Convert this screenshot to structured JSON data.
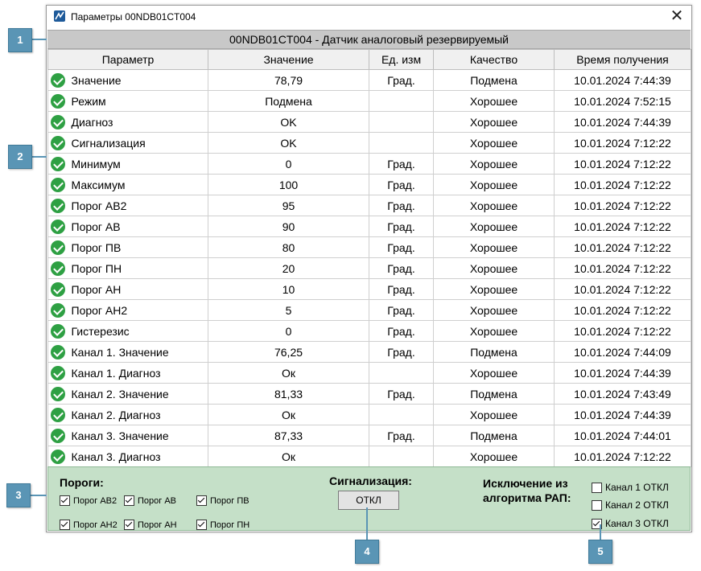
{
  "window": {
    "title": "Параметры 00NDB01CT004",
    "close_glyph": "✕"
  },
  "header": {
    "title": "00NDB01CT004 - Датчик аналоговый резервируемый"
  },
  "columns": [
    "Параметр",
    "Значение",
    "Ед. изм",
    "Качество",
    "Время получения"
  ],
  "rows": [
    {
      "name": "Значение",
      "value": "78,79",
      "unit": "Град.",
      "quality": "Подмена",
      "time": "10.01.2024 7:44:39"
    },
    {
      "name": "Режим",
      "value": "Подмена",
      "unit": "",
      "quality": "Хорошее",
      "time": "10.01.2024 7:52:15"
    },
    {
      "name": "Диагноз",
      "value": "OK",
      "unit": "",
      "quality": "Хорошее",
      "time": "10.01.2024 7:44:39"
    },
    {
      "name": "Сигнализация",
      "value": "OK",
      "unit": "",
      "quality": "Хорошее",
      "time": "10.01.2024 7:12:22"
    },
    {
      "name": "Минимум",
      "value": "0",
      "unit": "Град.",
      "quality": "Хорошее",
      "time": "10.01.2024 7:12:22"
    },
    {
      "name": "Максимум",
      "value": "100",
      "unit": "Град.",
      "quality": "Хорошее",
      "time": "10.01.2024 7:12:22"
    },
    {
      "name": "Порог АВ2",
      "value": "95",
      "unit": "Град.",
      "quality": "Хорошее",
      "time": "10.01.2024 7:12:22"
    },
    {
      "name": "Порог АВ",
      "value": "90",
      "unit": "Град.",
      "quality": "Хорошее",
      "time": "10.01.2024 7:12:22"
    },
    {
      "name": "Порог ПВ",
      "value": "80",
      "unit": "Град.",
      "quality": "Хорошее",
      "time": "10.01.2024 7:12:22"
    },
    {
      "name": "Порог ПН",
      "value": "20",
      "unit": "Град.",
      "quality": "Хорошее",
      "time": "10.01.2024 7:12:22"
    },
    {
      "name": "Порог АН",
      "value": "10",
      "unit": "Град.",
      "quality": "Хорошее",
      "time": "10.01.2024 7:12:22"
    },
    {
      "name": "Порог АН2",
      "value": "5",
      "unit": "Град.",
      "quality": "Хорошее",
      "time": "10.01.2024 7:12:22"
    },
    {
      "name": "Гистерезис",
      "value": "0",
      "unit": "Град.",
      "quality": "Хорошее",
      "time": "10.01.2024 7:12:22"
    },
    {
      "name": "Канал 1. Значение",
      "value": "76,25",
      "unit": "Град.",
      "quality": "Подмена",
      "time": "10.01.2024 7:44:09"
    },
    {
      "name": "Канал 1. Диагноз",
      "value": "Ок",
      "unit": "",
      "quality": "Хорошее",
      "time": "10.01.2024 7:44:39"
    },
    {
      "name": "Канал 2. Значение",
      "value": "81,33",
      "unit": "Град.",
      "quality": "Подмена",
      "time": "10.01.2024 7:43:49"
    },
    {
      "name": "Канал 2. Диагноз",
      "value": "Ок",
      "unit": "",
      "quality": "Хорошее",
      "time": "10.01.2024 7:44:39"
    },
    {
      "name": "Канал 3. Значение",
      "value": "87,33",
      "unit": "Град.",
      "quality": "Подмена",
      "time": "10.01.2024 7:44:01"
    },
    {
      "name": "Канал 3. Диагноз",
      "value": "Ок",
      "unit": "",
      "quality": "Хорошее",
      "time": "10.01.2024 7:12:22"
    }
  ],
  "row_icon": "check-circle-icon",
  "thresholds": {
    "label": "Пороги:",
    "items": [
      {
        "label": "Порог АВ2",
        "checked": true
      },
      {
        "label": "Порог АВ",
        "checked": true
      },
      {
        "label": "Порог ПВ",
        "checked": true
      },
      {
        "label": "Порог АН2",
        "checked": true
      },
      {
        "label": "Порог АН",
        "checked": true
      },
      {
        "label": "Порог ПН",
        "checked": true
      }
    ]
  },
  "alarm": {
    "label": "Сигнализация:",
    "button": "ОТКЛ"
  },
  "exclusion": {
    "label_line1": "Исключение из",
    "label_line2": "алгоритма РАП:",
    "channels": [
      {
        "label": "Канал 1 ОТКЛ",
        "checked": false
      },
      {
        "label": "Канал 2 ОТКЛ",
        "checked": false
      },
      {
        "label": "Канал 3 ОТКЛ",
        "checked": true
      }
    ]
  },
  "callouts": [
    "1",
    "2",
    "3",
    "4",
    "5"
  ],
  "colors": {
    "ok_icon": "#2ea043",
    "header_bg": "#c8c8c8",
    "panel_bg": "#c5e0c8",
    "callout": "#5a95b5"
  }
}
